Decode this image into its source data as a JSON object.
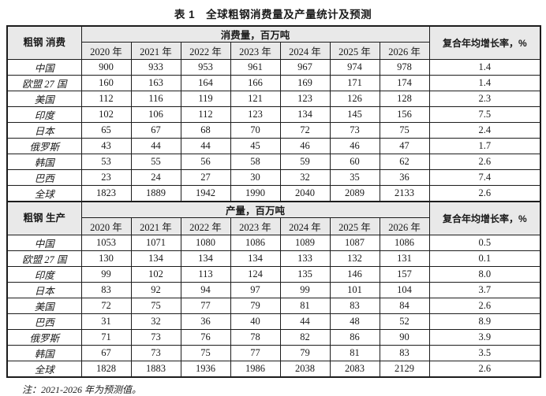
{
  "title": "表 1　全球粗钢消费量及产量统计及预测",
  "note": "注：2021-2026 年为预测值。",
  "colors": {
    "header_bg": "#e9e9e9",
    "border": "#1c1c1c",
    "text": "#1a1a1a"
  },
  "years": [
    "2020 年",
    "2021 年",
    "2022 年",
    "2023 年",
    "2024 年",
    "2025 年",
    "2026 年"
  ],
  "sections": [
    {
      "label": "粗钢\n消费",
      "group_header": "消费量，百万吨",
      "cagr_header": "复合年均增长率，%",
      "years": [
        "2020 年",
        "2021 年",
        "2022 年",
        "2023 年",
        "2024 年",
        "2025 年",
        "2026 年"
      ],
      "rows": [
        {
          "region": "中国",
          "values": [
            900,
            933,
            953,
            961,
            967,
            974,
            978
          ],
          "cagr": "1.4"
        },
        {
          "region": "欧盟 27 国",
          "values": [
            160,
            163,
            164,
            166,
            169,
            171,
            174
          ],
          "cagr": "1.4"
        },
        {
          "region": "美国",
          "values": [
            112,
            116,
            119,
            121,
            123,
            126,
            128
          ],
          "cagr": "2.3"
        },
        {
          "region": "印度",
          "values": [
            102,
            106,
            112,
            123,
            134,
            145,
            156
          ],
          "cagr": "7.5"
        },
        {
          "region": "日本",
          "values": [
            65,
            67,
            68,
            70,
            72,
            73,
            75
          ],
          "cagr": "2.4"
        },
        {
          "region": "俄罗斯",
          "values": [
            43,
            44,
            44,
            45,
            46,
            46,
            47
          ],
          "cagr": "1.7"
        },
        {
          "region": "韩国",
          "values": [
            53,
            55,
            56,
            58,
            59,
            60,
            62
          ],
          "cagr": "2.6"
        },
        {
          "region": "巴西",
          "values": [
            23,
            24,
            27,
            30,
            32,
            35,
            36
          ],
          "cagr": "7.4"
        },
        {
          "region": "全球",
          "values": [
            1823,
            1889,
            1942,
            1990,
            2040,
            2089,
            2133
          ],
          "cagr": "2.6"
        }
      ]
    },
    {
      "label": "粗钢\n生产",
      "group_header": "产量，百万吨",
      "cagr_header": "复合年均增长率，%",
      "years": [
        "2020 年",
        "2021 年",
        "2022 年",
        "2023 年",
        "2024 年",
        "2025 年",
        "2026 年"
      ],
      "rows": [
        {
          "region": "中国",
          "values": [
            1053,
            1071,
            1080,
            1086,
            1089,
            1087,
            1086
          ],
          "cagr": "0.5"
        },
        {
          "region": "欧盟 27 国",
          "values": [
            130,
            134,
            134,
            134,
            133,
            132,
            131
          ],
          "cagr": "0.1"
        },
        {
          "region": "印度",
          "values": [
            99,
            102,
            113,
            124,
            135,
            146,
            157
          ],
          "cagr": "8.0"
        },
        {
          "region": "日本",
          "values": [
            83,
            92,
            94,
            97,
            99,
            101,
            104
          ],
          "cagr": "3.7"
        },
        {
          "region": "美国",
          "values": [
            72,
            75,
            77,
            79,
            81,
            83,
            84
          ],
          "cagr": "2.6"
        },
        {
          "region": "巴西",
          "values": [
            31,
            32,
            36,
            40,
            44,
            48,
            52
          ],
          "cagr": "8.9"
        },
        {
          "region": "俄罗斯",
          "values": [
            71,
            73,
            76,
            78,
            82,
            86,
            90
          ],
          "cagr": "3.9"
        },
        {
          "region": "韩国",
          "values": [
            67,
            73,
            75,
            77,
            79,
            81,
            83
          ],
          "cagr": "3.5"
        },
        {
          "region": "全球",
          "values": [
            1828,
            1883,
            1936,
            1986,
            2038,
            2083,
            2129
          ],
          "cagr": "2.6"
        }
      ]
    }
  ]
}
